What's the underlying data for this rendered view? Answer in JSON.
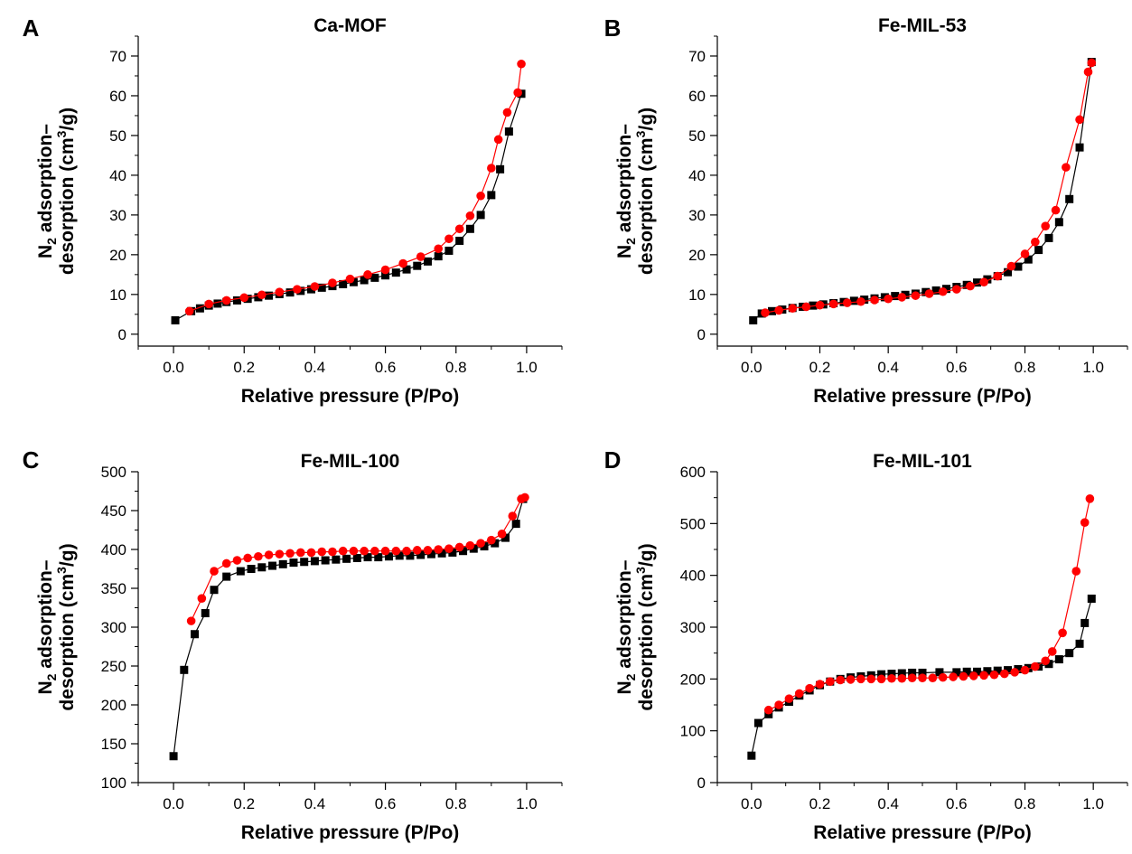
{
  "chart_data": [
    {
      "panel_label": "A",
      "type": "scatter",
      "title": "Ca-MOF",
      "xlabel": "Relative pressure (P/Po)",
      "ylabel_line1_pre": "N",
      "ylabel_line1_sub": "2",
      "ylabel_line1_post": " adsorption–",
      "ylabel_line2_pre": "desorption (cm",
      "ylabel_line2_sup": "3",
      "ylabel_line2_post": "/g)",
      "xlim": [
        -0.1,
        1.1
      ],
      "ylim": [
        -3,
        75
      ],
      "xticks": [
        0.0,
        0.2,
        0.4,
        0.6,
        0.8,
        1.0
      ],
      "xtick_labels": [
        "0.0",
        "0.2",
        "0.4",
        "0.6",
        "0.8",
        "1.0"
      ],
      "yticks": [
        0,
        10,
        20,
        30,
        40,
        50,
        60,
        70
      ],
      "ytick_labels": [
        "0",
        "10",
        "20",
        "30",
        "40",
        "50",
        "60",
        "70"
      ],
      "series": [
        {
          "color": "#000000",
          "marker": "square",
          "x": [
            0.005,
            0.05,
            0.075,
            0.1,
            0.125,
            0.15,
            0.18,
            0.21,
            0.24,
            0.27,
            0.3,
            0.33,
            0.36,
            0.39,
            0.42,
            0.45,
            0.48,
            0.51,
            0.54,
            0.57,
            0.6,
            0.63,
            0.66,
            0.69,
            0.72,
            0.75,
            0.78,
            0.81,
            0.84,
            0.87,
            0.9,
            0.925,
            0.95,
            0.985
          ],
          "y": [
            3.5,
            5.8,
            6.5,
            7.2,
            7.7,
            8.1,
            8.5,
            8.9,
            9.3,
            9.7,
            10.1,
            10.5,
            10.9,
            11.3,
            11.7,
            12.1,
            12.6,
            13.1,
            13.6,
            14.2,
            14.8,
            15.5,
            16.3,
            17.2,
            18.3,
            19.6,
            21.0,
            23.5,
            26.5,
            30.0,
            35.0,
            41.5,
            51.0,
            60.5
          ]
        },
        {
          "color": "#ff0000",
          "marker": "circle",
          "x": [
            0.045,
            0.1,
            0.15,
            0.2,
            0.25,
            0.3,
            0.35,
            0.4,
            0.45,
            0.5,
            0.55,
            0.6,
            0.65,
            0.7,
            0.75,
            0.78,
            0.81,
            0.84,
            0.87,
            0.9,
            0.92,
            0.945,
            0.975,
            0.985
          ],
          "y": [
            5.8,
            7.6,
            8.5,
            9.2,
            9.9,
            10.6,
            11.3,
            12.0,
            12.9,
            13.9,
            15.0,
            16.2,
            17.8,
            19.5,
            21.5,
            24.0,
            26.5,
            29.8,
            34.8,
            41.8,
            49.0,
            55.8,
            60.8,
            68.0
          ]
        }
      ]
    },
    {
      "panel_label": "B",
      "type": "scatter",
      "title": "Fe-MIL-53",
      "xlabel": "Relative pressure (P/Po)",
      "ylabel_line1_pre": "N",
      "ylabel_line1_sub": "2",
      "ylabel_line1_post": " adsorption–",
      "ylabel_line2_pre": "desorption (cm",
      "ylabel_line2_sup": "3",
      "ylabel_line2_post": "/g)",
      "xlim": [
        -0.1,
        1.1
      ],
      "ylim": [
        -3,
        75
      ],
      "xticks": [
        0.0,
        0.2,
        0.4,
        0.6,
        0.8,
        1.0
      ],
      "xtick_labels": [
        "0.0",
        "0.2",
        "0.4",
        "0.6",
        "0.8",
        "1.0"
      ],
      "yticks": [
        0,
        10,
        20,
        30,
        40,
        50,
        60,
        70
      ],
      "ytick_labels": [
        "0",
        "10",
        "20",
        "30",
        "40",
        "50",
        "60",
        "70"
      ],
      "series": [
        {
          "color": "#000000",
          "marker": "square",
          "x": [
            0.005,
            0.03,
            0.06,
            0.09,
            0.12,
            0.15,
            0.18,
            0.21,
            0.24,
            0.27,
            0.3,
            0.33,
            0.36,
            0.39,
            0.42,
            0.45,
            0.48,
            0.51,
            0.54,
            0.57,
            0.6,
            0.63,
            0.66,
            0.69,
            0.72,
            0.75,
            0.78,
            0.81,
            0.84,
            0.87,
            0.9,
            0.93,
            0.96,
            0.995
          ],
          "y": [
            3.5,
            5.2,
            5.8,
            6.2,
            6.6,
            6.9,
            7.2,
            7.5,
            7.8,
            8.1,
            8.4,
            8.7,
            9.0,
            9.3,
            9.6,
            9.9,
            10.2,
            10.6,
            11.0,
            11.4,
            11.9,
            12.4,
            13.0,
            13.8,
            14.6,
            15.6,
            17.0,
            18.8,
            21.2,
            24.2,
            28.2,
            34.0,
            47.0,
            68.5
          ]
        },
        {
          "color": "#ff0000",
          "marker": "circle",
          "x": [
            0.04,
            0.08,
            0.12,
            0.16,
            0.2,
            0.24,
            0.28,
            0.32,
            0.36,
            0.4,
            0.44,
            0.48,
            0.52,
            0.56,
            0.6,
            0.64,
            0.68,
            0.72,
            0.76,
            0.8,
            0.83,
            0.86,
            0.89,
            0.92,
            0.96,
            0.985,
            0.995
          ],
          "y": [
            5.4,
            6.0,
            6.5,
            6.9,
            7.3,
            7.6,
            7.9,
            8.2,
            8.6,
            8.9,
            9.3,
            9.7,
            10.2,
            10.7,
            11.3,
            12.1,
            13.1,
            14.6,
            17.1,
            20.2,
            23.2,
            27.2,
            31.2,
            42.0,
            54.0,
            66.0,
            68.3
          ]
        }
      ]
    },
    {
      "panel_label": "C",
      "type": "scatter",
      "title": "Fe-MIL-100",
      "xlabel": "Relative pressure (P/Po)",
      "ylabel_line1_pre": "N",
      "ylabel_line1_sub": "2",
      "ylabel_line1_post": " adsorption–",
      "ylabel_line2_pre": "desorption (cm",
      "ylabel_line2_sup": "3",
      "ylabel_line2_post": "/g)",
      "xlim": [
        -0.1,
        1.1
      ],
      "ylim": [
        100,
        500
      ],
      "xticks": [
        0.0,
        0.2,
        0.4,
        0.6,
        0.8,
        1.0
      ],
      "xtick_labels": [
        "0.0",
        "0.2",
        "0.4",
        "0.6",
        "0.8",
        "1.0"
      ],
      "yticks": [
        100,
        150,
        200,
        250,
        300,
        350,
        400,
        450,
        500
      ],
      "ytick_labels": [
        "100",
        "150",
        "200",
        "250",
        "300",
        "350",
        "400",
        "450",
        "500"
      ],
      "series": [
        {
          "color": "#000000",
          "marker": "square",
          "x": [
            0.0,
            0.03,
            0.06,
            0.09,
            0.115,
            0.15,
            0.19,
            0.22,
            0.25,
            0.28,
            0.31,
            0.34,
            0.37,
            0.4,
            0.43,
            0.46,
            0.49,
            0.52,
            0.55,
            0.58,
            0.61,
            0.64,
            0.67,
            0.7,
            0.73,
            0.76,
            0.79,
            0.82,
            0.85,
            0.88,
            0.91,
            0.94,
            0.97,
            0.99
          ],
          "y": [
            134,
            245,
            291,
            318,
            348,
            365,
            372,
            375,
            377,
            379,
            381,
            383,
            384,
            385,
            386,
            387,
            388,
            389,
            390,
            390,
            391,
            392,
            392,
            393,
            394,
            395,
            396,
            398,
            401,
            404,
            408,
            415,
            433,
            465
          ]
        },
        {
          "color": "#ff0000",
          "marker": "circle",
          "x": [
            0.05,
            0.08,
            0.115,
            0.15,
            0.18,
            0.21,
            0.24,
            0.27,
            0.3,
            0.33,
            0.36,
            0.39,
            0.42,
            0.45,
            0.48,
            0.51,
            0.54,
            0.57,
            0.6,
            0.63,
            0.66,
            0.69,
            0.72,
            0.75,
            0.78,
            0.81,
            0.84,
            0.87,
            0.9,
            0.93,
            0.96,
            0.985,
            0.995
          ],
          "y": [
            308,
            337,
            372,
            382,
            386,
            389,
            391,
            393,
            394,
            395,
            396,
            396,
            397,
            397,
            398,
            398,
            398,
            398,
            398,
            398,
            398,
            399,
            399,
            400,
            401,
            403,
            405,
            408,
            412,
            420,
            443,
            465,
            467
          ]
        }
      ]
    },
    {
      "panel_label": "D",
      "type": "scatter",
      "title": "Fe-MIL-101",
      "xlabel": "Relative pressure (P/Po)",
      "ylabel_line1_pre": "N",
      "ylabel_line1_sub": "2",
      "ylabel_line1_post": " adsorption–",
      "ylabel_line2_pre": "desorption (cm",
      "ylabel_line2_sup": "3",
      "ylabel_line2_post": "/g)",
      "xlim": [
        -0.1,
        1.1
      ],
      "ylim": [
        0,
        600
      ],
      "xticks": [
        0.0,
        0.2,
        0.4,
        0.6,
        0.8,
        1.0
      ],
      "xtick_labels": [
        "0.0",
        "0.2",
        "0.4",
        "0.6",
        "0.8",
        "1.0"
      ],
      "yticks": [
        0,
        100,
        200,
        300,
        400,
        500,
        600
      ],
      "ytick_labels": [
        "0",
        "100",
        "200",
        "300",
        "400",
        "500",
        "600"
      ],
      "series": [
        {
          "color": "#000000",
          "marker": "square",
          "x": [
            0.0,
            0.02,
            0.05,
            0.08,
            0.11,
            0.14,
            0.17,
            0.2,
            0.23,
            0.26,
            0.29,
            0.32,
            0.35,
            0.38,
            0.41,
            0.44,
            0.47,
            0.5,
            0.55,
            0.6,
            0.63,
            0.66,
            0.69,
            0.72,
            0.75,
            0.78,
            0.81,
            0.84,
            0.87,
            0.9,
            0.93,
            0.96,
            0.975,
            0.995
          ],
          "y": [
            52,
            115,
            132,
            145,
            156,
            168,
            178,
            188,
            195,
            200,
            203,
            205,
            207,
            209,
            210,
            211,
            212,
            212,
            213,
            213,
            214,
            214,
            215,
            216,
            217,
            219,
            221,
            224,
            229,
            238,
            250,
            268,
            308,
            355
          ]
        },
        {
          "color": "#ff0000",
          "marker": "circle",
          "x": [
            0.05,
            0.08,
            0.11,
            0.14,
            0.17,
            0.2,
            0.23,
            0.26,
            0.29,
            0.32,
            0.35,
            0.38,
            0.41,
            0.44,
            0.47,
            0.5,
            0.53,
            0.56,
            0.59,
            0.62,
            0.65,
            0.68,
            0.71,
            0.74,
            0.77,
            0.8,
            0.83,
            0.86,
            0.88,
            0.91,
            0.95,
            0.975,
            0.99
          ],
          "y": [
            140,
            150,
            162,
            172,
            182,
            190,
            195,
            198,
            199,
            200,
            200,
            200,
            201,
            201,
            202,
            202,
            202,
            203,
            204,
            205,
            206,
            207,
            208,
            210,
            213,
            217,
            224,
            235,
            253,
            289,
            408,
            502,
            548
          ]
        }
      ]
    }
  ]
}
